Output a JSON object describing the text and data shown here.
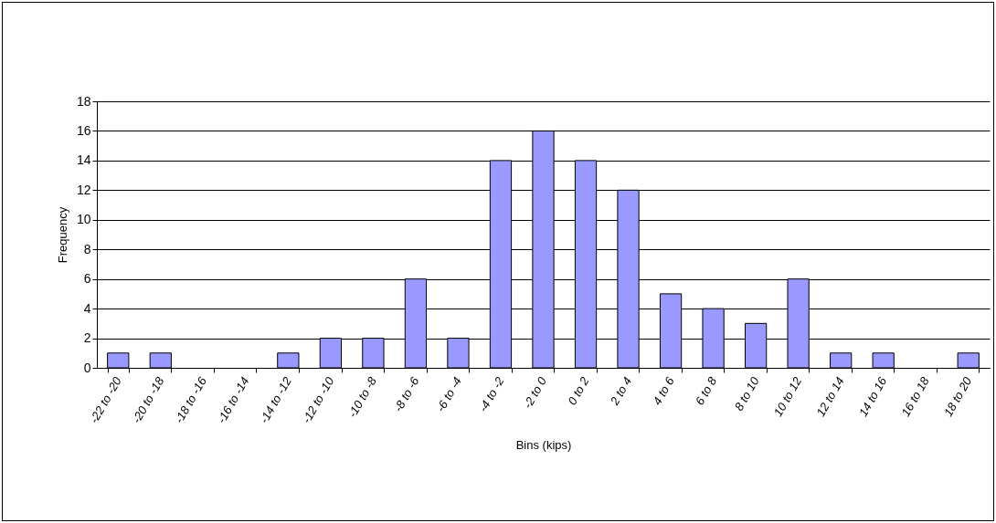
{
  "chart_data": {
    "type": "bar",
    "xlabel": "Bins (kips)",
    "ylabel": "Frequency",
    "categories": [
      "-22 to -20",
      "-20 to -18",
      "-18 to -16",
      "-16 to -14",
      "-14 to -12",
      "-12 to -10",
      "-10 to -8",
      "-8 to -6",
      "-6 to -4",
      "-4 to -2",
      "-2 to 0",
      "0 to 2",
      "2 to 4",
      "4 to 6",
      "6 to 8",
      "8 to 10",
      "10 to 12",
      "12 to 14",
      "14 to 16",
      "16 to 18",
      "18 to 20"
    ],
    "values": [
      1,
      1,
      0,
      0,
      1,
      2,
      2,
      6,
      2,
      14,
      16,
      14,
      12,
      5,
      4,
      3,
      6,
      1,
      1,
      0,
      1
    ],
    "color": "#9999ff",
    "ylim": [
      0,
      18
    ],
    "yticks": [
      0,
      2,
      4,
      6,
      8,
      10,
      12,
      14,
      16,
      18
    ],
    "grid": "y"
  }
}
